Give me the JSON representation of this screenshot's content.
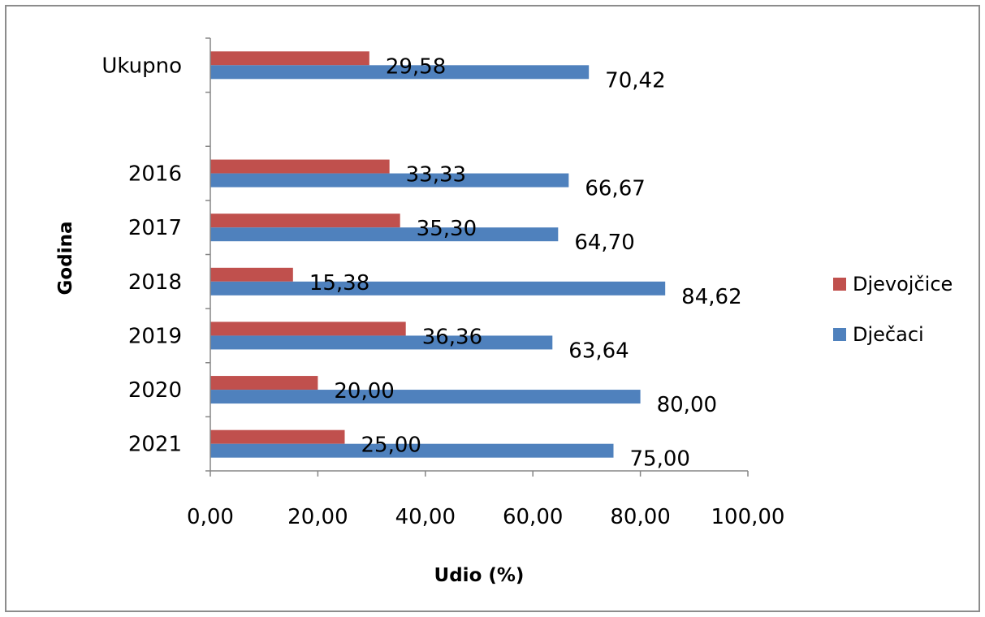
{
  "chart_data": {
    "type": "bar",
    "orientation": "horizontal",
    "categories": [
      "Ukupno",
      "",
      "2016",
      "2017",
      "2018",
      "2019",
      "2020",
      "2021"
    ],
    "series": [
      {
        "name": "Djevojčice",
        "color": "#c0504d",
        "values": [
          29.58,
          null,
          33.33,
          35.3,
          15.38,
          36.36,
          20.0,
          25.0
        ],
        "labels": [
          "29,58",
          "",
          "33,33",
          "35,30",
          "15,38",
          "36,36",
          "20,00",
          "25,00"
        ]
      },
      {
        "name": "Dječaci",
        "color": "#4f81bd",
        "values": [
          70.42,
          null,
          66.67,
          64.7,
          84.62,
          63.64,
          80.0,
          75.0
        ],
        "labels": [
          "70,42",
          "",
          "66,67",
          "64,70",
          "84,62",
          "63,64",
          "80,00",
          "75,00"
        ]
      }
    ],
    "xlabel": "Udio (%)",
    "ylabel": "Godina",
    "xlim": [
      0,
      100
    ],
    "xticks": [
      "0,00",
      "20,00",
      "40,00",
      "60,00",
      "80,00",
      "100,00"
    ],
    "xtick_values": [
      0,
      20,
      40,
      60,
      80,
      100
    ],
    "legend_position": "right",
    "grid": false
  }
}
